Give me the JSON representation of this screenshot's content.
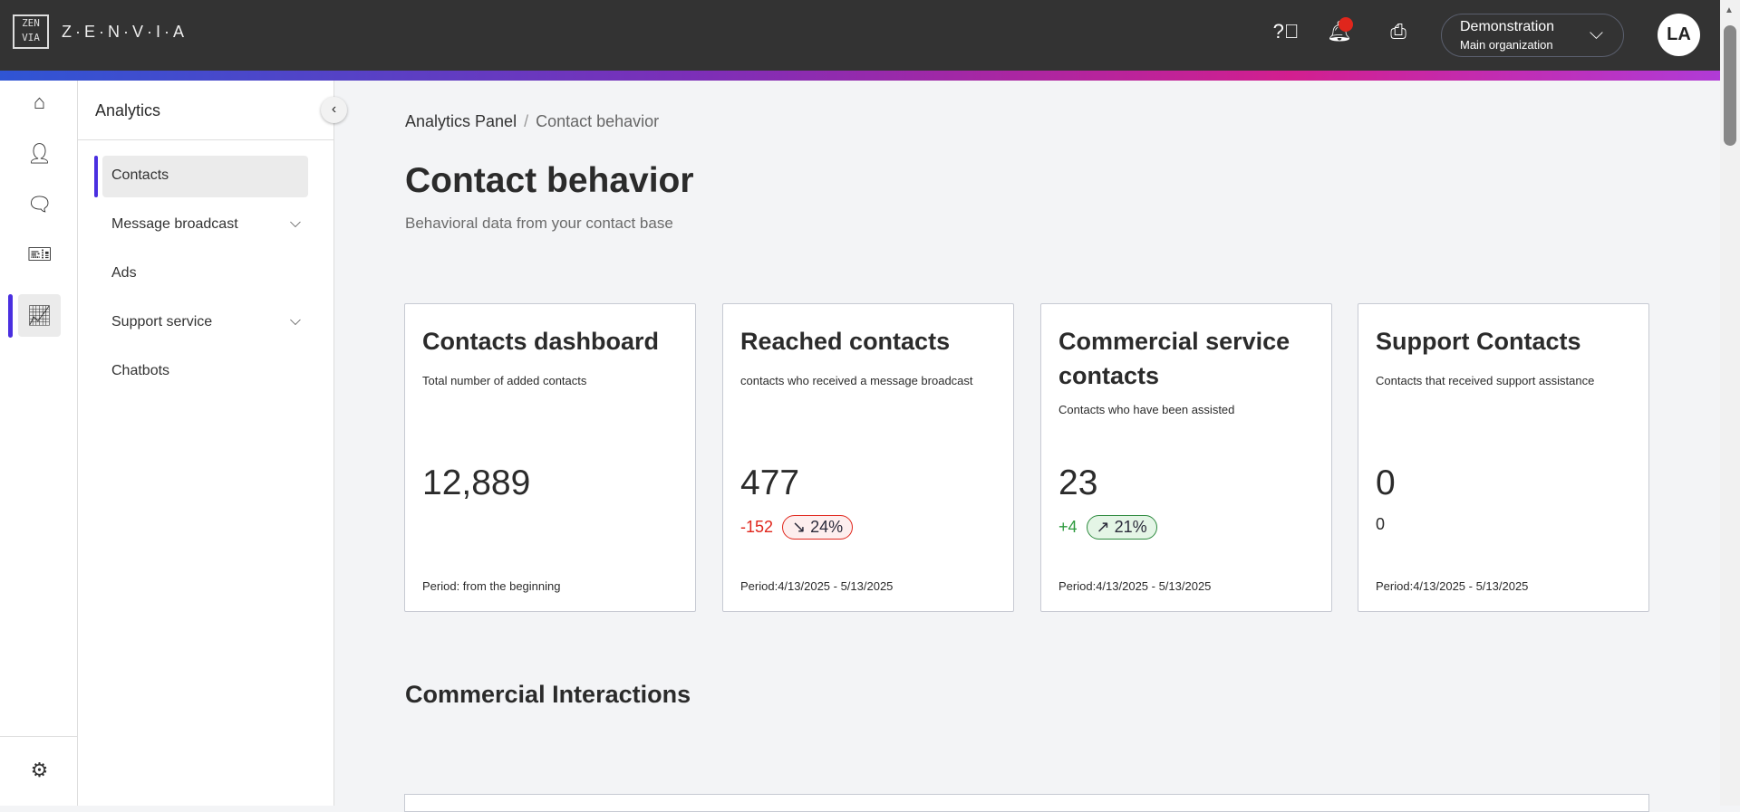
{
  "header": {
    "logo_mark": "ZEN VIA",
    "logo_text": "Z·E·N·V·I·A",
    "org_name": "Demonstration",
    "org_sub": "Main organization",
    "avatar": "LA",
    "icons": [
      "help-icon",
      "bell-icon",
      "printer-icon",
      "chevron-down-icon"
    ],
    "notification_color": "#e0261c"
  },
  "rail": {
    "icons": [
      "home-icon",
      "user-icon",
      "chat-icon",
      "ticket-icon",
      "analytics-icon",
      "gear-icon"
    ],
    "active": "analytics"
  },
  "sidebar": {
    "title": "Analytics",
    "items": [
      {
        "label": "Contacts",
        "active": true
      },
      {
        "label": "Message broadcast",
        "expandable": true
      },
      {
        "label": "Ads"
      },
      {
        "label": "Support service",
        "expandable": true
      },
      {
        "label": "Chatbots"
      }
    ]
  },
  "breadcrumb": {
    "parent": "Analytics Panel",
    "sep": "/",
    "current": "Contact behavior"
  },
  "page": {
    "title": "Contact behavior",
    "subtitle": "Behavioral data from your contact base"
  },
  "cards": [
    {
      "title": "Contacts dashboard",
      "desc": "Total number of added contacts",
      "value": "12,889",
      "period": "Period: from the beginning"
    },
    {
      "title": "Reached contacts",
      "desc": "contacts who received a message broadcast",
      "value": "477",
      "delta": "-152",
      "pct": "↘ 24%",
      "period": "Period:4/13/2025 - 5/13/2025"
    },
    {
      "title": "Commercial service contacts",
      "desc": "Contacts who have been assisted",
      "value": "23",
      "delta": "+4",
      "pct": "↗ 21%",
      "period": "Period:4/13/2025 - 5/13/2025"
    },
    {
      "title": "Support Contacts",
      "desc": "Contacts that received support assistance",
      "value": "0",
      "delta": "0",
      "period": "Period:4/13/2025 - 5/13/2025"
    }
  ],
  "section": {
    "title": "Commercial Interactions"
  },
  "colors": {
    "accent": "#4a2fe0",
    "negative": "#e0261c",
    "positive": "#2d9a3e"
  }
}
